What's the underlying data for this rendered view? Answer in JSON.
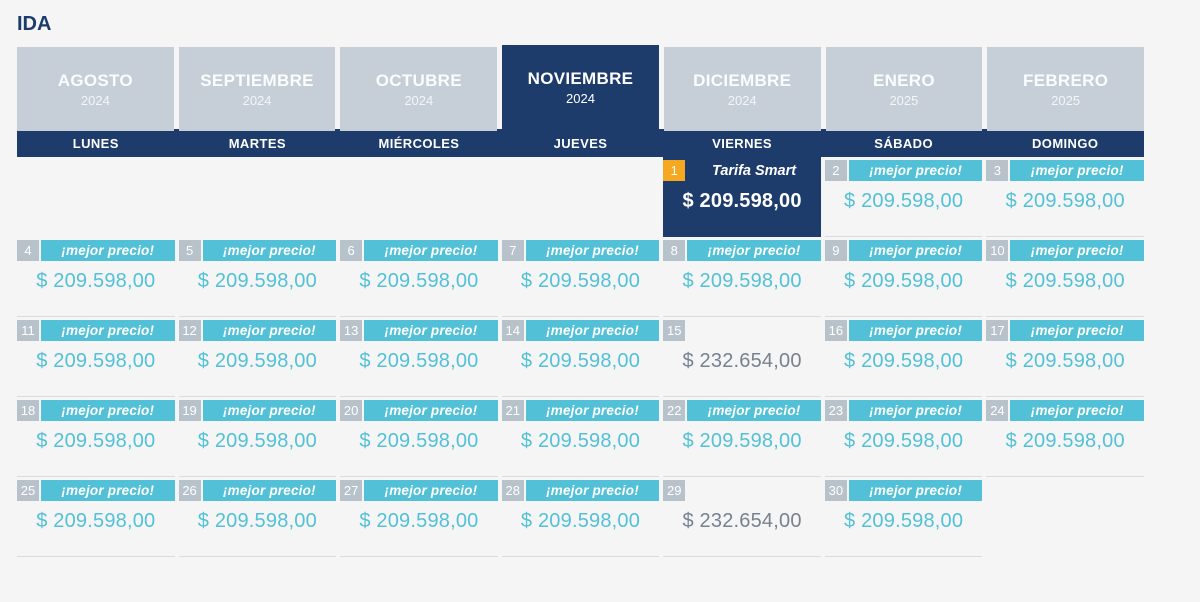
{
  "page": {
    "title": "IDA"
  },
  "colors": {
    "navy": "#1d3c6c",
    "teal": "#52c1d7",
    "orange": "#f6a821",
    "day_badge_gray": "#b8c2cb",
    "month_tab_gray": "#c6cfd7",
    "regular_price_text": "#75828f",
    "background": "#f5f5f6",
    "row_border": "#d9dbde"
  },
  "month_tabs": [
    {
      "label": "AGOSTO",
      "year": "2024",
      "selected": false
    },
    {
      "label": "SEPTIEMBRE",
      "year": "2024",
      "selected": false
    },
    {
      "label": "OCTUBRE",
      "year": "2024",
      "selected": false
    },
    {
      "label": "NOVIEMBRE",
      "year": "2024",
      "selected": true
    },
    {
      "label": "DICIEMBRE",
      "year": "2024",
      "selected": false
    },
    {
      "label": "ENERO",
      "year": "2025",
      "selected": false
    },
    {
      "label": "FEBRERO",
      "year": "2025",
      "selected": false
    }
  ],
  "weekdays": [
    "LUNES",
    "MARTES",
    "MIÉRCOLES",
    "JUEVES",
    "VIERNES",
    "SÁBADO",
    "DOMINGO"
  ],
  "calendar": {
    "promo_label": "¡mejor precio!",
    "selected_fare_label": "Tarifa Smart",
    "best_price": "$ 209.598,00",
    "regular_price": "$ 232.654,00",
    "cells": [
      {
        "type": "empty"
      },
      {
        "type": "empty"
      },
      {
        "type": "empty"
      },
      {
        "type": "empty"
      },
      {
        "type": "selected",
        "day": "1",
        "price": "$ 209.598,00"
      },
      {
        "type": "promo",
        "day": "2",
        "price": "$ 209.598,00"
      },
      {
        "type": "promo",
        "day": "3",
        "price": "$ 209.598,00"
      },
      {
        "type": "promo",
        "day": "4",
        "price": "$ 209.598,00"
      },
      {
        "type": "promo",
        "day": "5",
        "price": "$ 209.598,00"
      },
      {
        "type": "promo",
        "day": "6",
        "price": "$ 209.598,00"
      },
      {
        "type": "promo",
        "day": "7",
        "price": "$ 209.598,00"
      },
      {
        "type": "promo",
        "day": "8",
        "price": "$ 209.598,00"
      },
      {
        "type": "promo",
        "day": "9",
        "price": "$ 209.598,00"
      },
      {
        "type": "promo",
        "day": "10",
        "price": "$ 209.598,00"
      },
      {
        "type": "promo",
        "day": "11",
        "price": "$ 209.598,00"
      },
      {
        "type": "promo",
        "day": "12",
        "price": "$ 209.598,00"
      },
      {
        "type": "promo",
        "day": "13",
        "price": "$ 209.598,00"
      },
      {
        "type": "promo",
        "day": "14",
        "price": "$ 209.598,00"
      },
      {
        "type": "plain",
        "day": "15",
        "price": "$ 232.654,00"
      },
      {
        "type": "promo",
        "day": "16",
        "price": "$ 209.598,00"
      },
      {
        "type": "promo",
        "day": "17",
        "price": "$ 209.598,00"
      },
      {
        "type": "promo",
        "day": "18",
        "price": "$ 209.598,00"
      },
      {
        "type": "promo",
        "day": "19",
        "price": "$ 209.598,00"
      },
      {
        "type": "promo",
        "day": "20",
        "price": "$ 209.598,00"
      },
      {
        "type": "promo",
        "day": "21",
        "price": "$ 209.598,00"
      },
      {
        "type": "promo",
        "day": "22",
        "price": "$ 209.598,00"
      },
      {
        "type": "promo",
        "day": "23",
        "price": "$ 209.598,00"
      },
      {
        "type": "promo",
        "day": "24",
        "price": "$ 209.598,00"
      },
      {
        "type": "promo",
        "day": "25",
        "price": "$ 209.598,00"
      },
      {
        "type": "promo",
        "day": "26",
        "price": "$ 209.598,00"
      },
      {
        "type": "promo",
        "day": "27",
        "price": "$ 209.598,00"
      },
      {
        "type": "promo",
        "day": "28",
        "price": "$ 209.598,00"
      },
      {
        "type": "plain",
        "day": "29",
        "price": "$ 232.654,00"
      },
      {
        "type": "promo",
        "day": "30",
        "price": "$ 209.598,00"
      },
      {
        "type": "empty"
      }
    ]
  }
}
